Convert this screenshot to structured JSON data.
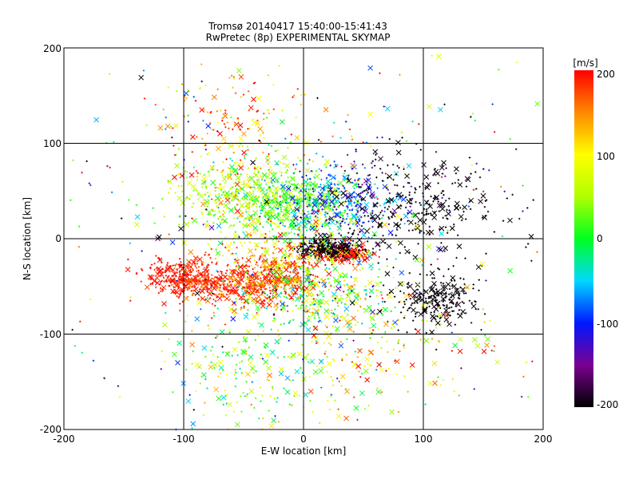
{
  "chart_data": {
    "type": "scatter",
    "title": "Tromsø 20140417 15:40:00-15:41:43",
    "subtitle": "RwPretec (8p) EXPERIMENTAL SKYMAP",
    "xlabel": "E-W location [km]",
    "ylabel": "N-S location [km]",
    "xlim": [
      -200,
      200
    ],
    "ylim": [
      -200,
      200
    ],
    "x_ticks": [
      "-200",
      "-100",
      "0",
      "100",
      "200"
    ],
    "y_ticks": [
      "-200",
      "-100",
      "0",
      "100",
      "200"
    ],
    "grid": "on",
    "colorbar": {
      "title": "[m/s]",
      "range": [
        -200,
        200
      ],
      "ticks": [
        "200",
        "100",
        "0",
        "-100",
        "-200"
      ]
    },
    "colors": {
      "-200": "#000000",
      "-150": "#7a0090",
      "-100": "#0018ff",
      "-50": "#00d8ff",
      "0": "#00ff20",
      "50": "#b0ff00",
      "100": "#ffff00",
      "150": "#ff8800",
      "200": "#ff0000"
    },
    "markers": {
      "dot": "small plus",
      "cross": "x"
    },
    "clusters": [
      {
        "x": -45,
        "y": -47,
        "sx": 30,
        "sy": 12,
        "n": 600,
        "v": 185,
        "vs": 25
      },
      {
        "x": -105,
        "y": -40,
        "sx": 14,
        "sy": 10,
        "n": 220,
        "v": 190,
        "vs": 15
      },
      {
        "x": 35,
        "y": -15,
        "sx": 10,
        "sy": 4,
        "n": 220,
        "v": 195,
        "vs": 8
      },
      {
        "x": 20,
        "y": -10,
        "sx": 14,
        "sy": 6,
        "n": 260,
        "v": -200,
        "vs": 15
      },
      {
        "x": -5,
        "y": 35,
        "sx": 22,
        "sy": 18,
        "n": 500,
        "v": 20,
        "vs": 40
      },
      {
        "x": -60,
        "y": 45,
        "sx": 22,
        "sy": 20,
        "n": 350,
        "v": 60,
        "vs": 45
      },
      {
        "x": 35,
        "y": 40,
        "sx": 22,
        "sy": 20,
        "n": 300,
        "v": -95,
        "vs": 40
      },
      {
        "x": 95,
        "y": 35,
        "sx": 35,
        "sy": 28,
        "n": 300,
        "v": -200,
        "vs": 10
      },
      {
        "x": 110,
        "y": -65,
        "sx": 18,
        "sy": 12,
        "n": 220,
        "v": -200,
        "vs": 10
      },
      {
        "x": 10,
        "y": -60,
        "sx": 30,
        "sy": 20,
        "n": 300,
        "v": 30,
        "vs": 60
      },
      {
        "x": -20,
        "y": -20,
        "sx": 30,
        "sy": 15,
        "n": 250,
        "v": 110,
        "vs": 50
      },
      {
        "x": -60,
        "y": 120,
        "sx": 30,
        "sy": 30,
        "n": 150,
        "v": 140,
        "vs": 50
      },
      {
        "x": -40,
        "y": -140,
        "sx": 35,
        "sy": 30,
        "n": 200,
        "v": 40,
        "vs": 60
      },
      {
        "x": 60,
        "y": -110,
        "sx": 40,
        "sy": 35,
        "n": 150,
        "v": 100,
        "vs": 60
      },
      {
        "x": 0,
        "y": 0,
        "sx": 120,
        "sy": 110,
        "n": 500,
        "v": 0,
        "vs": 150
      }
    ]
  }
}
